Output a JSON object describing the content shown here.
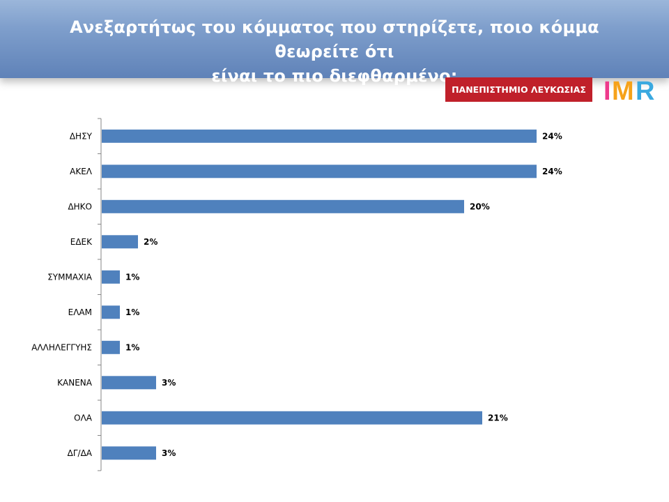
{
  "header": {
    "title_line1": "Ανεξαρτήτως του κόμματος που στηρίζετε, ποιο κόμμα θεωρείτε ότι",
    "title_line2": "είναι το πιο διεφθαρμένο;"
  },
  "logos": {
    "university": "ΠΑΝΕΠΙΣΤΗΜΙΟ ΛΕΥΚΩΣΙΑΣ",
    "university_color": "#c0202a",
    "imr": "IMR",
    "imr_colors": [
      "#ee3a8c",
      "#f6a21a",
      "#3aa9e0"
    ]
  },
  "chart_data": {
    "type": "bar",
    "orientation": "horizontal",
    "categories": [
      "ΔΗΣΥ",
      "ΑΚΕΛ",
      "ΔΗΚΟ",
      "ΕΔΕΚ",
      "ΣΥΜΜΑΧΙΑ",
      "ΕΛΑΜ",
      "ΑΛΛΗΛΕΓΓΥΗΣ",
      "ΚΑΝΕΝΑ",
      "ΟΛΑ",
      "ΔΓ/ΔΑ"
    ],
    "values": [
      24,
      24,
      20,
      2,
      1,
      1,
      1,
      3,
      21,
      3
    ],
    "value_labels": [
      "24%",
      "24%",
      "20%",
      "2%",
      "1%",
      "1%",
      "1%",
      "3%",
      "21%",
      "3%"
    ],
    "bar_color": "#4f81bd",
    "unit": "%",
    "grid": false,
    "legend": "none"
  }
}
